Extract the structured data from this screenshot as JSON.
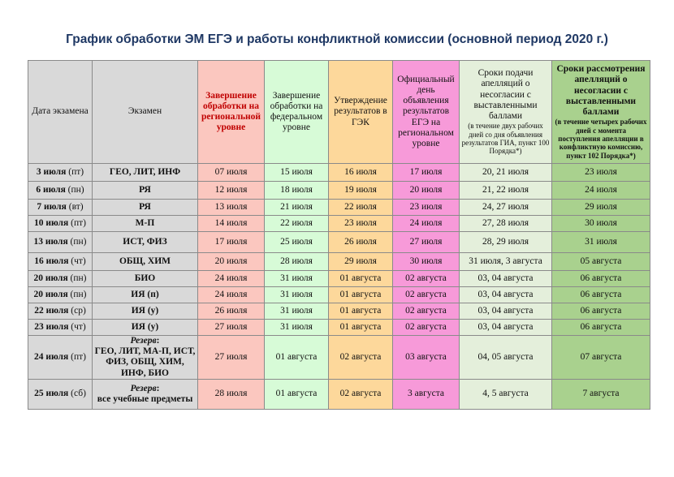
{
  "title": "График обработки ЭМ ЕГЭ и работы конфликтной комиссии (основной период 2020 г.)",
  "headers": {
    "date": "Дата экзамена",
    "exam": "Экзамен",
    "regional": "Завершение обработки на региональной уровне",
    "federal": "Завершение обработки на федеральном уровне",
    "gek": "Утверждение результатов в ГЭК",
    "official": "Официальный день объявления результатов ЕГЭ на региональном уровне",
    "appeal_main": "Сроки подачи апелляций о несогласии с выставленными баллами",
    "appeal_note": "(в течение двух рабочих дней со дня объявления результатов ГИА, пункт 100 Порядка*)",
    "review_main": "Сроки рассмотрения апелляций о несогласии с выставленными баллами",
    "review_note": "(в течение четырех рабочих дней с момента поступления апелляции в конфликтную комиссию, пункт 102 Порядка*)"
  },
  "rows": [
    {
      "date": "3 июля",
      "wd": "(пт)",
      "reserve": "",
      "exam": "ГЕО, ЛИТ, ИНФ",
      "regional": "07 июля",
      "federal": "15 июля",
      "gek": "16 июля",
      "official": "17 июля",
      "appeal": "20, 21 июля",
      "review": "23 июля"
    },
    {
      "date": "6 июля",
      "wd": "(пн)",
      "reserve": "",
      "exam": "РЯ",
      "regional": "12 июля",
      "federal": "18 июля",
      "gek": "19 июля",
      "official": "20 июля",
      "appeal": "21, 22 июля",
      "review": "24 июля"
    },
    {
      "date": "7 июля",
      "wd": "(вт)",
      "reserve": "",
      "exam": "РЯ",
      "regional": "13 июля",
      "federal": "21 июля",
      "gek": "22 июля",
      "official": "23 июля",
      "appeal": "24, 27 июля",
      "review": "29 июля"
    },
    {
      "date": "10 июля",
      "wd": "(пт)",
      "reserve": "",
      "exam": "М-П",
      "regional": "14 июля",
      "federal": "22 июля",
      "gek": "23 июля",
      "official": "24 июля",
      "appeal": "27, 28 июля",
      "review": "30 июля"
    },
    {
      "date": "13 июля",
      "wd": "(пн)",
      "reserve": "",
      "exam": "ИСТ, ФИЗ",
      "regional": "17 июля",
      "federal": "25 июля",
      "gek": "26 июля",
      "official": "27 июля",
      "appeal": "28, 29 июля",
      "review": "31 июля"
    },
    {
      "date": "16 июля",
      "wd": "(чт)",
      "reserve": "",
      "exam": "ОБЩ, ХИМ",
      "regional": "20 июля",
      "federal": "28 июля",
      "gek": "29 июля",
      "official": "30 июля",
      "appeal": "31 июля, 3 августа",
      "review": "05 августа"
    },
    {
      "date": "20 июля",
      "wd": "(пн)",
      "reserve": "",
      "exam": "БИО",
      "regional": "24 июля",
      "federal": "31 июля",
      "gek": "01 августа",
      "official": "02 августа",
      "appeal": "03, 04 августа",
      "review": "06 августа"
    },
    {
      "date": "20 июля",
      "wd": "(пн)",
      "reserve": "",
      "exam": "ИЯ (п)",
      "regional": "24 июля",
      "federal": "31 июля",
      "gek": "01 августа",
      "official": "02 августа",
      "appeal": "03, 04 августа",
      "review": "06 августа"
    },
    {
      "date": "22 июля",
      "wd": "(ср)",
      "reserve": "",
      "exam": "ИЯ (у)",
      "regional": "26 июля",
      "federal": "31 июля",
      "gek": "01 августа",
      "official": "02 августа",
      "appeal": "03, 04 августа",
      "review": "06 августа"
    },
    {
      "date": "23 июля",
      "wd": "(чт)",
      "reserve": "",
      "exam": "ИЯ (у)",
      "regional": "27 июля",
      "federal": "31 июля",
      "gek": "01 августа",
      "official": "02 августа",
      "appeal": "03, 04 августа",
      "review": "06 августа"
    },
    {
      "date": "24 июля",
      "wd": "(пт)",
      "reserve": "Резерв",
      "exam": "ГЕО, ЛИТ, МА-П, ИСТ, ФИЗ, ОБЩ, ХИМ, ИНФ, БИО",
      "regional": "27 июля",
      "federal": "01 августа",
      "gek": "02 августа",
      "official": "03 августа",
      "appeal": "04, 05 августа",
      "review": "07 августа"
    },
    {
      "date": "25 июля",
      "wd": "(сб)",
      "reserve": "Резерв",
      "exam": "все учебные предметы",
      "regional": "28 июля",
      "federal": "01 августа",
      "gek": "02 августа",
      "official": "3 августа",
      "appeal": "4, 5 августа",
      "review": "7 августа"
    }
  ],
  "colors": {
    "gray": "#d9d9d9",
    "regional": "#fbc7bf",
    "federal": "#d7fbd7",
    "gek": "#fdd89b",
    "official": "#f79ad9",
    "appeal": "#e4efdb",
    "review": "#a9d18e"
  }
}
